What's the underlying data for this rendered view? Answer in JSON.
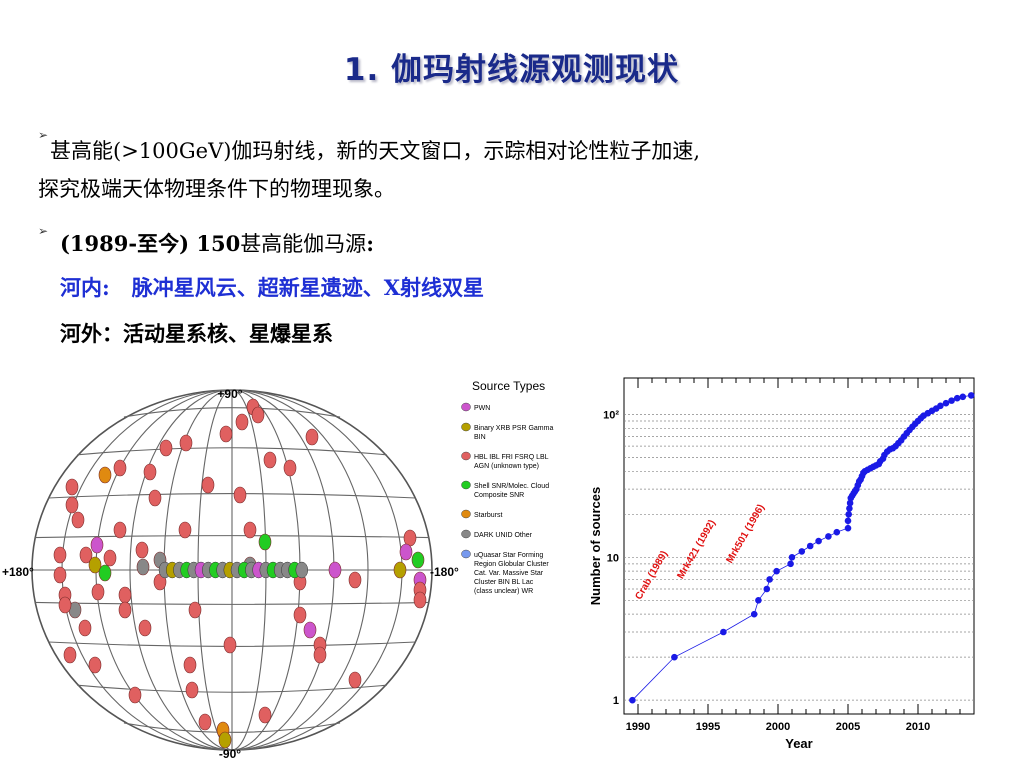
{
  "slide": {
    "title": "1. 伽玛射线源观测现状",
    "bullet1_line1": "甚高能(>100GeV)伽玛射线，新的天文窗口，示踪相对论性粒子加速,",
    "bullet1_line2": "探究极端天体物理条件下的物理现象。",
    "bullet2_bold": "(1989-至今) 150",
    "bullet2_rest": "甚高能伽马源",
    "bullet2_colon": ":",
    "galactic_label": "河内:",
    "galactic_list": "脉冲星风云、超新星遗迹、X射线双星",
    "extragalactic_line": "河外：活动星系核、星爆星系"
  },
  "skymap": {
    "label_top": "+90°",
    "label_bottom": "-90°",
    "label_left": "+180°",
    "label_right": "-180°",
    "legend_title": "Source Types",
    "legend": [
      {
        "color": "#cc55cc",
        "lines": [
          "PWN"
        ]
      },
      {
        "color": "#b5a000",
        "lines": [
          "Binary XRB PSR Gamma",
          "BIN"
        ]
      },
      {
        "color": "#e06060",
        "lines": [
          "HBL IBL FRI FSRQ LBL",
          "AGN (unknown type)"
        ]
      },
      {
        "color": "#22cc22",
        "lines": [
          "Shell SNR/Molec. Cloud",
          "Composite SNR"
        ]
      },
      {
        "color": "#e08a10",
        "lines": [
          "Starburst"
        ]
      },
      {
        "color": "#888888",
        "lines": [
          "DARK UNID Other"
        ]
      },
      {
        "color": "#7799ee",
        "lines": [
          "uQuasar Star Forming",
          "Region Globular Cluster",
          "Cat. Var. Massive Star",
          "Cluster BIN BL Lac",
          "(class unclear) WR"
        ]
      }
    ]
  },
  "chart_data": {
    "type": "scatter",
    "title": "",
    "xlabel": "Year",
    "ylabel": "Number of sources",
    "xlim": [
      1989,
      2014
    ],
    "ylim": [
      0.8,
      180
    ],
    "yscale": "log",
    "x_ticks": [
      "1990",
      "1995",
      "2000",
      "2005",
      "2010"
    ],
    "y_ticks": [
      "1",
      "10",
      "10²"
    ],
    "annotations": [
      "Crab (1989)",
      "Mrk421 (1992)",
      "Mrk501 (1996)"
    ],
    "series_color": "#1a1ae6",
    "points": [
      [
        1989.6,
        1
      ],
      [
        1992.6,
        2
      ],
      [
        1996.1,
        3
      ],
      [
        1998.3,
        4
      ],
      [
        1998.6,
        5
      ],
      [
        1999.2,
        6
      ],
      [
        1999.4,
        7
      ],
      [
        1999.9,
        8
      ],
      [
        2000.9,
        9
      ],
      [
        2001.0,
        10
      ],
      [
        2001.7,
        11
      ],
      [
        2002.3,
        12
      ],
      [
        2002.9,
        13
      ],
      [
        2003.6,
        14
      ],
      [
        2004.2,
        15
      ],
      [
        2005.0,
        16
      ],
      [
        2005.0,
        18
      ],
      [
        2005.05,
        20
      ],
      [
        2005.1,
        22
      ],
      [
        2005.15,
        24
      ],
      [
        2005.2,
        26
      ],
      [
        2005.3,
        27
      ],
      [
        2005.4,
        28
      ],
      [
        2005.5,
        29
      ],
      [
        2005.6,
        30
      ],
      [
        2005.7,
        32
      ],
      [
        2005.8,
        34
      ],
      [
        2005.9,
        35
      ],
      [
        2006.0,
        37
      ],
      [
        2006.1,
        39
      ],
      [
        2006.2,
        40
      ],
      [
        2006.4,
        41
      ],
      [
        2006.6,
        42
      ],
      [
        2006.8,
        43
      ],
      [
        2007.0,
        44
      ],
      [
        2007.2,
        45
      ],
      [
        2007.3,
        47
      ],
      [
        2007.5,
        49
      ],
      [
        2007.6,
        52
      ],
      [
        2007.8,
        55
      ],
      [
        2008.0,
        57
      ],
      [
        2008.2,
        58
      ],
      [
        2008.4,
        60
      ],
      [
        2008.6,
        63
      ],
      [
        2008.8,
        66
      ],
      [
        2009.0,
        70
      ],
      [
        2009.2,
        74
      ],
      [
        2009.4,
        78
      ],
      [
        2009.6,
        82
      ],
      [
        2009.8,
        86
      ],
      [
        2010.0,
        90
      ],
      [
        2010.2,
        94
      ],
      [
        2010.4,
        98
      ],
      [
        2010.7,
        102
      ],
      [
        2011.0,
        106
      ],
      [
        2011.3,
        110
      ],
      [
        2011.6,
        115
      ],
      [
        2012.0,
        120
      ],
      [
        2012.4,
        125
      ],
      [
        2012.8,
        130
      ],
      [
        2013.2,
        133
      ],
      [
        2013.8,
        136
      ]
    ]
  }
}
